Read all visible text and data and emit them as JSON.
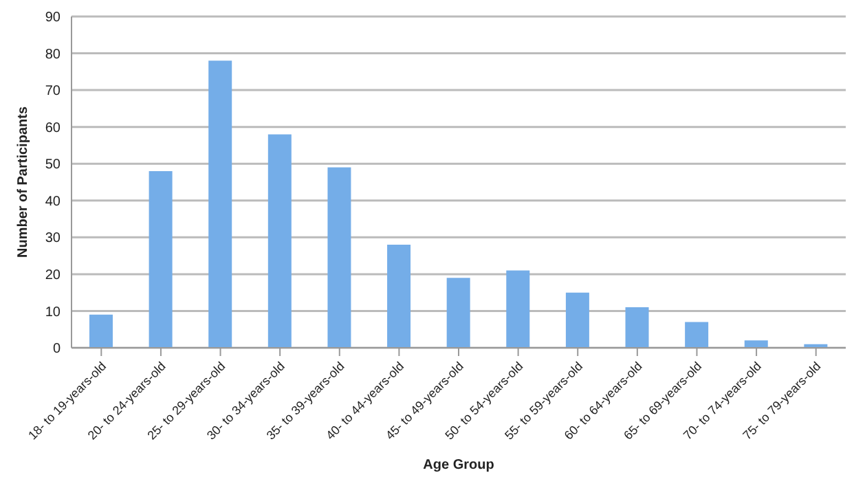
{
  "chart_data": {
    "type": "bar",
    "xlabel": "Age Group",
    "ylabel": "Number of Participants",
    "categories": [
      "18- to 19-years-old",
      "20- to 24-years-old",
      "25- to 29-years-old",
      "30- to 34-years-old",
      "35- to 39-years-old",
      "40- to 44-years-old",
      "45- to 49-years-old",
      "50- to 54-years-old",
      "55- to 59-years-old",
      "60- to 64-years-old",
      "65- to 69-years-old",
      "70- to 74-years-old",
      "75- to 79-years-old"
    ],
    "values": [
      9,
      48,
      78,
      58,
      49,
      28,
      19,
      21,
      15,
      11,
      7,
      2,
      1
    ],
    "color": "#74ade8",
    "ylim": [
      0,
      90
    ],
    "yticks": [
      0,
      10,
      20,
      30,
      40,
      50,
      60,
      70,
      80,
      90
    ],
    "grid": "y"
  }
}
